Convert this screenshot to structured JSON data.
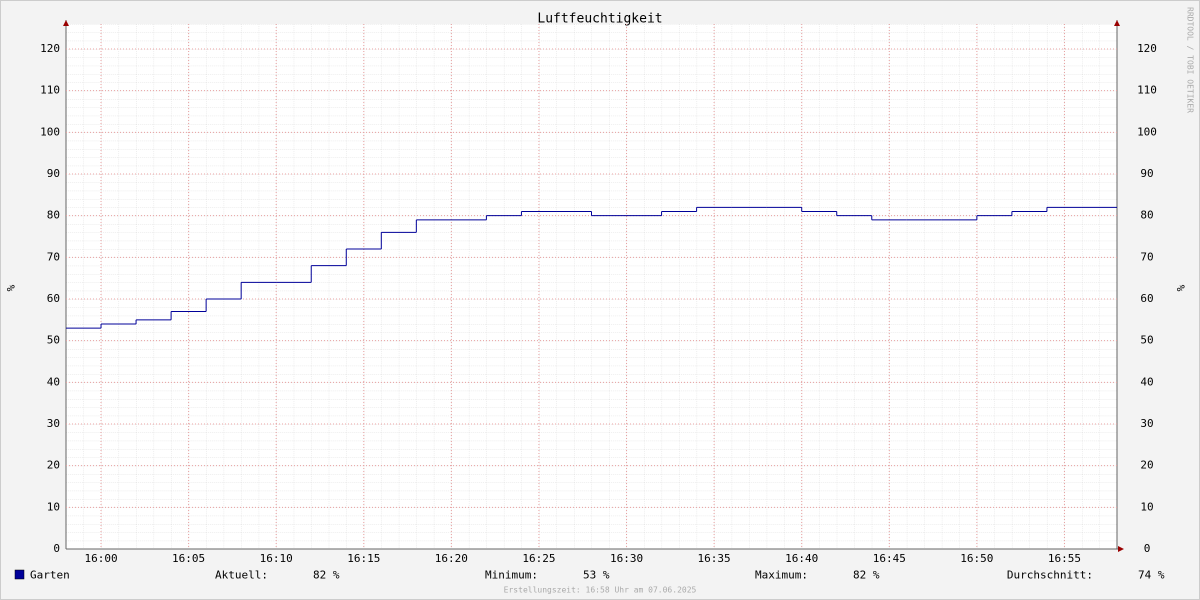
{
  "chart_data": {
    "type": "step",
    "title": "Luftfeuchtigkeit",
    "y_label": "%",
    "watermark": "RRDTOOL / TOBI OETIKER",
    "x": [
      "15:58",
      "16:00",
      "16:02",
      "16:04",
      "16:06",
      "16:08",
      "16:10",
      "16:12",
      "16:14",
      "16:16",
      "16:18",
      "16:20",
      "16:22",
      "16:24",
      "16:26",
      "16:28",
      "16:30",
      "16:32",
      "16:34",
      "16:36",
      "16:38",
      "16:40",
      "16:42",
      "16:44",
      "16:46",
      "16:48",
      "16:50",
      "16:52",
      "16:54",
      "16:56"
    ],
    "series": [
      {
        "name": "Garten",
        "color": "#000099",
        "values": [
          53,
          54,
          55,
          57,
          60,
          64,
          64,
          68,
          72,
          76,
          79,
          79,
          80,
          81,
          81,
          80,
          80,
          81,
          82,
          82,
          82,
          81,
          80,
          79,
          79,
          79,
          80,
          81,
          82,
          82
        ]
      }
    ],
    "xlim": [
      "15:58",
      "16:58"
    ],
    "xticks": [
      "16:00",
      "16:05",
      "16:10",
      "16:15",
      "16:20",
      "16:25",
      "16:30",
      "16:35",
      "16:40",
      "16:45",
      "16:50",
      "16:55"
    ],
    "ylim": [
      0,
      126
    ],
    "yticks": [
      0,
      10,
      20,
      30,
      40,
      50,
      60,
      70,
      80,
      90,
      100,
      110,
      120
    ],
    "grid": true,
    "legend_stats": [
      {
        "label": "Aktuell:",
        "value": "82 %"
      },
      {
        "label": "Minimum:",
        "value": "53 %"
      },
      {
        "label": "Maximum:",
        "value": "82 %"
      },
      {
        "label": "Durchschnitt:",
        "value": "74 %"
      }
    ],
    "footer": "Erstellungszeit: 16:58 Uhr am 07.06.2025"
  }
}
